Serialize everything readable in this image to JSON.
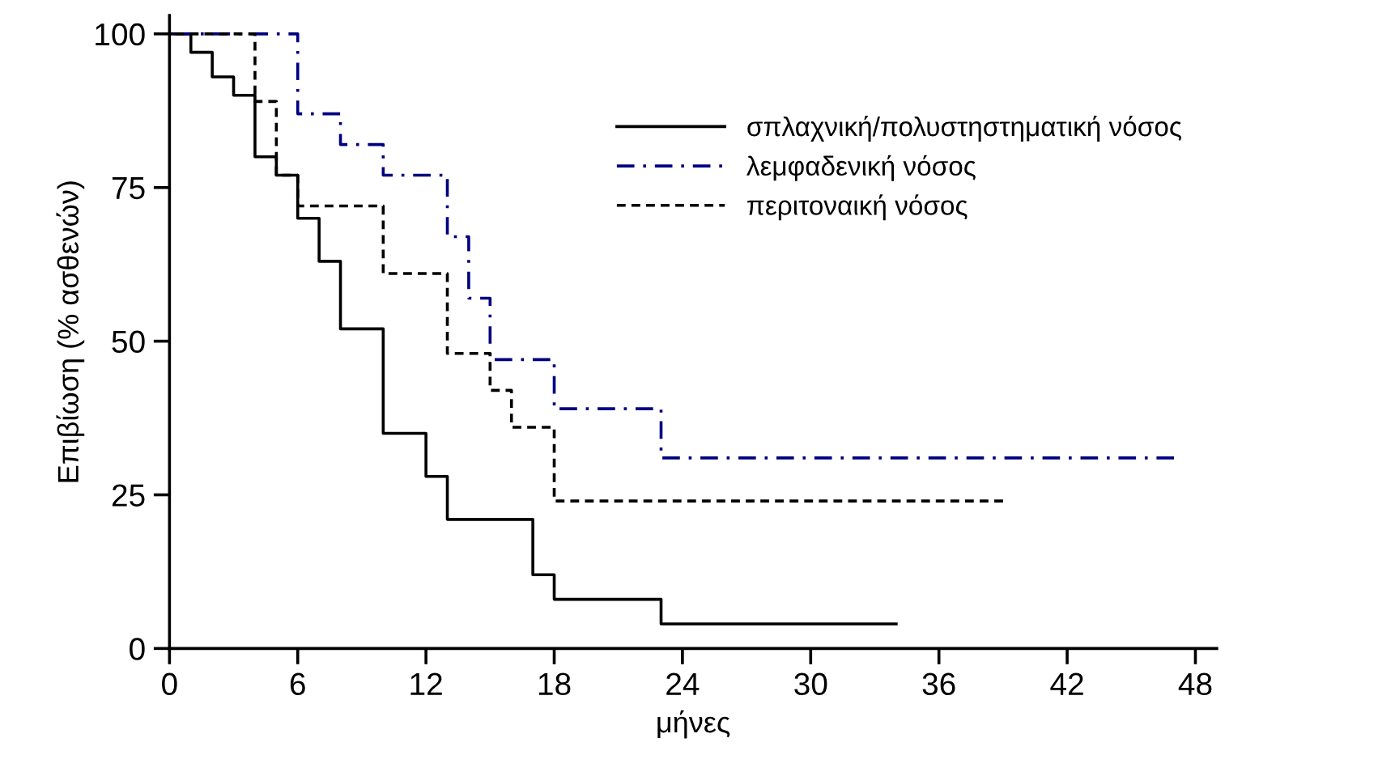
{
  "chart_data": {
    "type": "step",
    "xlabel": "μήνες",
    "ylabel": "Επιβίωση (% ασθενών)",
    "xlim": [
      0,
      49
    ],
    "ylim": [
      0,
      103
    ],
    "xticks": [
      0,
      6,
      12,
      18,
      24,
      30,
      36,
      42,
      48
    ],
    "yticks": [
      0,
      25,
      50,
      75,
      100
    ],
    "grid": false,
    "legend": "top right",
    "series": [
      {
        "name": "σπλαχνική/πολυστηστηματική νόσος",
        "color": "#000000",
        "line_style": "solid",
        "x": [
          0,
          1,
          2,
          3,
          4,
          5,
          6,
          7,
          8,
          10,
          12,
          13,
          17,
          18,
          23,
          34
        ],
        "values": [
          100,
          97,
          93,
          90,
          80,
          77,
          70,
          63,
          52,
          35,
          28,
          21,
          12,
          8,
          4,
          4
        ]
      },
      {
        "name": "λεμφαδενική νόσος",
        "color": "#000080",
        "line_style": "dashdot",
        "x": [
          0,
          6,
          8,
          10,
          13,
          14,
          15,
          18,
          23,
          47
        ],
        "values": [
          100,
          87,
          82,
          77,
          67,
          57,
          47,
          39,
          31,
          31
        ]
      },
      {
        "name": "περιτοναική νόσος",
        "color": "#000000",
        "line_style": "dashed",
        "x": [
          0,
          4,
          5,
          6,
          10,
          13,
          15,
          16,
          18,
          39
        ],
        "values": [
          100,
          89,
          77,
          72,
          61,
          48,
          42,
          36,
          24,
          24
        ]
      }
    ]
  }
}
